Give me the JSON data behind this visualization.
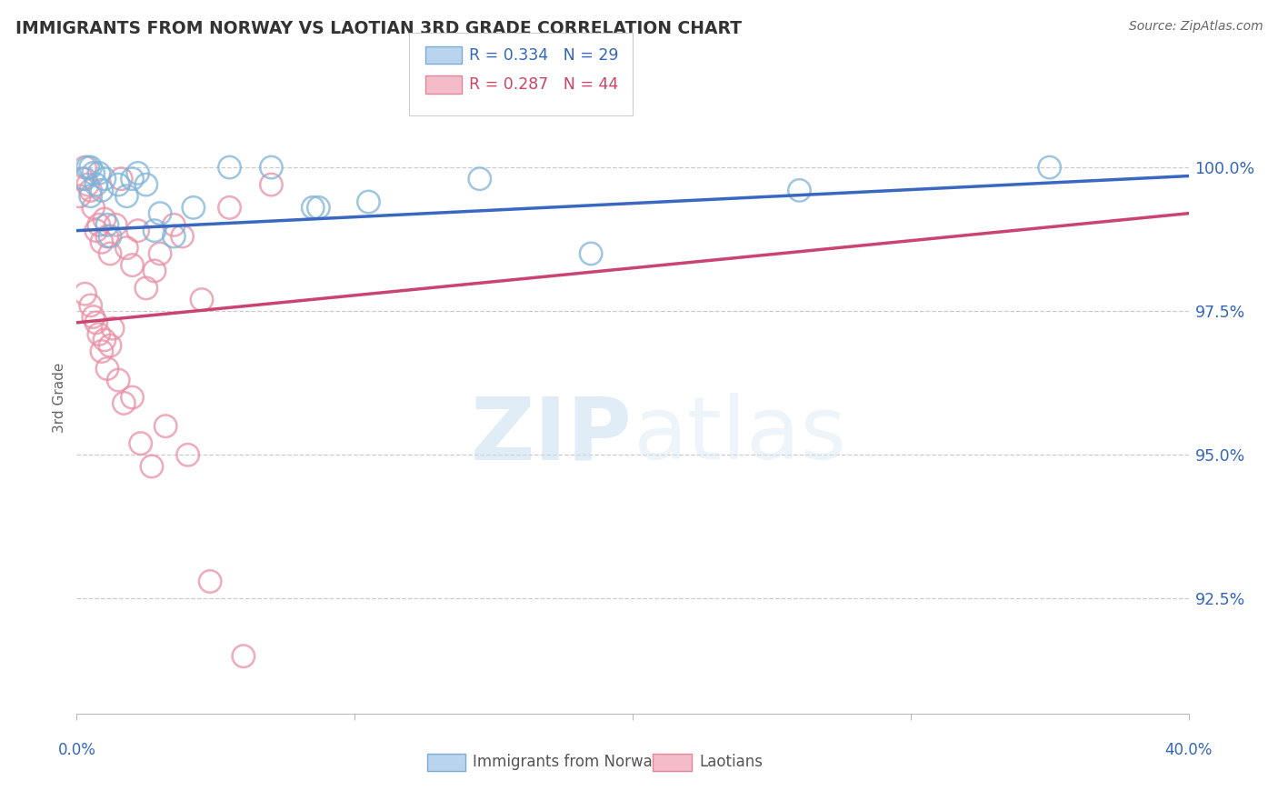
{
  "title": "IMMIGRANTS FROM NORWAY VS LAOTIAN 3RD GRADE CORRELATION CHART",
  "source": "Source: ZipAtlas.com",
  "ylabel": "3rd Grade",
  "yticks": [
    92.5,
    95.0,
    97.5,
    100.0
  ],
  "ytick_labels": [
    "92.5%",
    "95.0%",
    "97.5%",
    "100.0%"
  ],
  "xlim": [
    0.0,
    40.0
  ],
  "ylim": [
    90.5,
    101.5
  ],
  "legend_blue_r": "R = 0.334",
  "legend_blue_n": "N = 29",
  "legend_pink_r": "R = 0.287",
  "legend_pink_n": "N = 44",
  "blue_scatter_color": "#7fb3d8",
  "pink_scatter_color": "#e88fa4",
  "blue_line_color": "#3a68c0",
  "pink_line_color": "#c94472",
  "blue_swatch_face": "#b8d4ee",
  "blue_swatch_edge": "#7bacd0",
  "pink_swatch_face": "#f4bcc8",
  "pink_swatch_edge": "#e08898",
  "watermark_zip": "ZIP",
  "watermark_atlas": "atlas",
  "norway_x": [
    0.3,
    0.4,
    0.5,
    0.5,
    0.6,
    0.7,
    0.8,
    0.9,
    1.0,
    1.1,
    1.2,
    1.5,
    1.8,
    2.0,
    2.2,
    2.5,
    2.8,
    3.0,
    3.5,
    4.2,
    5.5,
    7.0,
    10.5,
    14.5,
    18.5,
    26.0,
    35.0,
    8.5,
    8.7
  ],
  "norway_y": [
    99.8,
    100.0,
    99.5,
    100.0,
    99.9,
    99.7,
    99.9,
    99.6,
    99.8,
    99.0,
    98.8,
    99.7,
    99.5,
    99.8,
    99.9,
    99.7,
    98.9,
    99.2,
    98.8,
    99.3,
    100.0,
    100.0,
    99.4,
    99.8,
    98.5,
    99.6,
    100.0,
    99.3,
    99.3
  ],
  "laotian_x": [
    0.1,
    0.2,
    0.3,
    0.4,
    0.5,
    0.6,
    0.7,
    0.8,
    0.9,
    1.0,
    1.1,
    1.2,
    1.4,
    1.6,
    1.8,
    2.0,
    2.2,
    2.5,
    2.8,
    3.0,
    3.5,
    4.5,
    5.5,
    7.0,
    0.3,
    0.5,
    0.6,
    0.7,
    0.8,
    0.9,
    1.0,
    1.1,
    1.2,
    1.3,
    1.5,
    1.7,
    2.0,
    2.3,
    2.7,
    3.2,
    4.0,
    4.8,
    6.0,
    3.8
  ],
  "laotian_y": [
    99.5,
    99.8,
    100.0,
    99.7,
    99.6,
    99.3,
    98.9,
    99.0,
    98.7,
    99.1,
    98.8,
    98.5,
    99.0,
    99.8,
    98.6,
    98.3,
    98.9,
    97.9,
    98.2,
    98.5,
    99.0,
    97.7,
    99.3,
    99.7,
    97.8,
    97.6,
    97.4,
    97.3,
    97.1,
    96.8,
    97.0,
    96.5,
    96.9,
    97.2,
    96.3,
    95.9,
    96.0,
    95.2,
    94.8,
    95.5,
    95.0,
    92.8,
    91.5,
    98.8
  ],
  "blue_line_x0": 0.0,
  "blue_line_y0": 98.9,
  "blue_line_x1": 40.0,
  "blue_line_y1": 99.85,
  "pink_line_x0": 0.0,
  "pink_line_y0": 97.3,
  "pink_line_x1": 40.0,
  "pink_line_y1": 99.2
}
